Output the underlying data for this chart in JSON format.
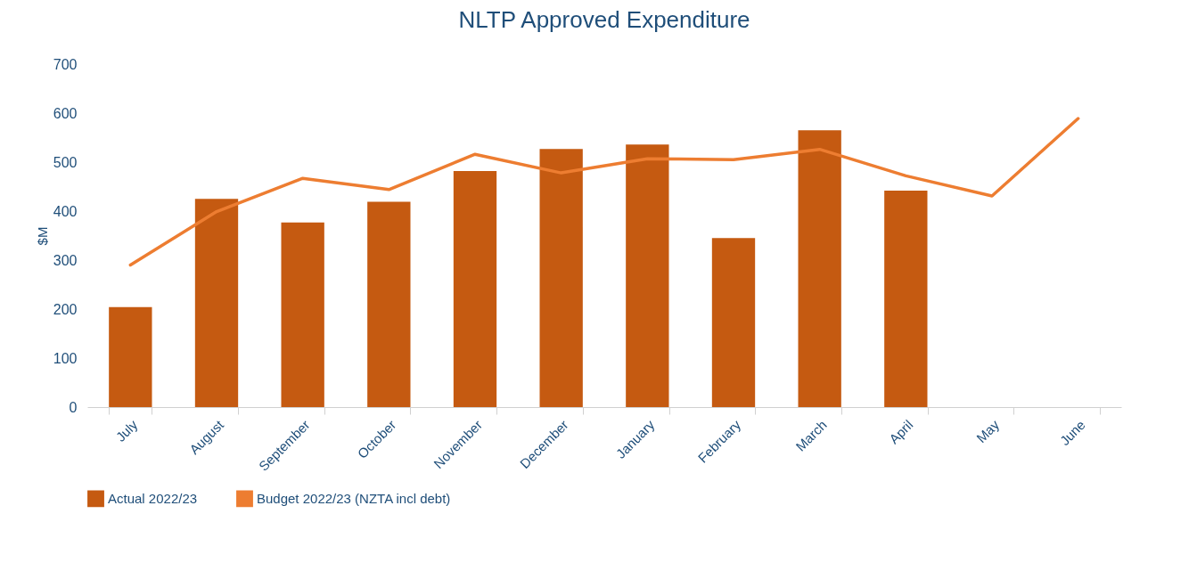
{
  "chart_data": {
    "type": "bar",
    "title": "NLTP Approved  Expenditure",
    "ylabel": "$M",
    "categories": [
      "July",
      "August",
      "September",
      "October",
      "November",
      "December",
      "January",
      "February",
      "March",
      "April",
      "May",
      "June"
    ],
    "series": [
      {
        "name": "Actual 2022/23",
        "color": "#c55a11",
        "values": [
          204,
          425,
          377,
          419,
          482,
          527,
          536,
          345,
          565,
          442,
          null,
          null
        ]
      },
      {
        "name": "Budget 2022/23 (NZTA incl debt)",
        "type": "line",
        "color": "#ed7d31",
        "values": [
          290,
          399,
          467,
          444,
          516,
          478,
          507,
          505,
          526,
          472,
          431,
          589
        ]
      }
    ],
    "ylim": [
      0,
      700
    ],
    "yticks": [
      0,
      100,
      200,
      300,
      400,
      500,
      600,
      700
    ],
    "grid": false,
    "legend": "bottom"
  }
}
